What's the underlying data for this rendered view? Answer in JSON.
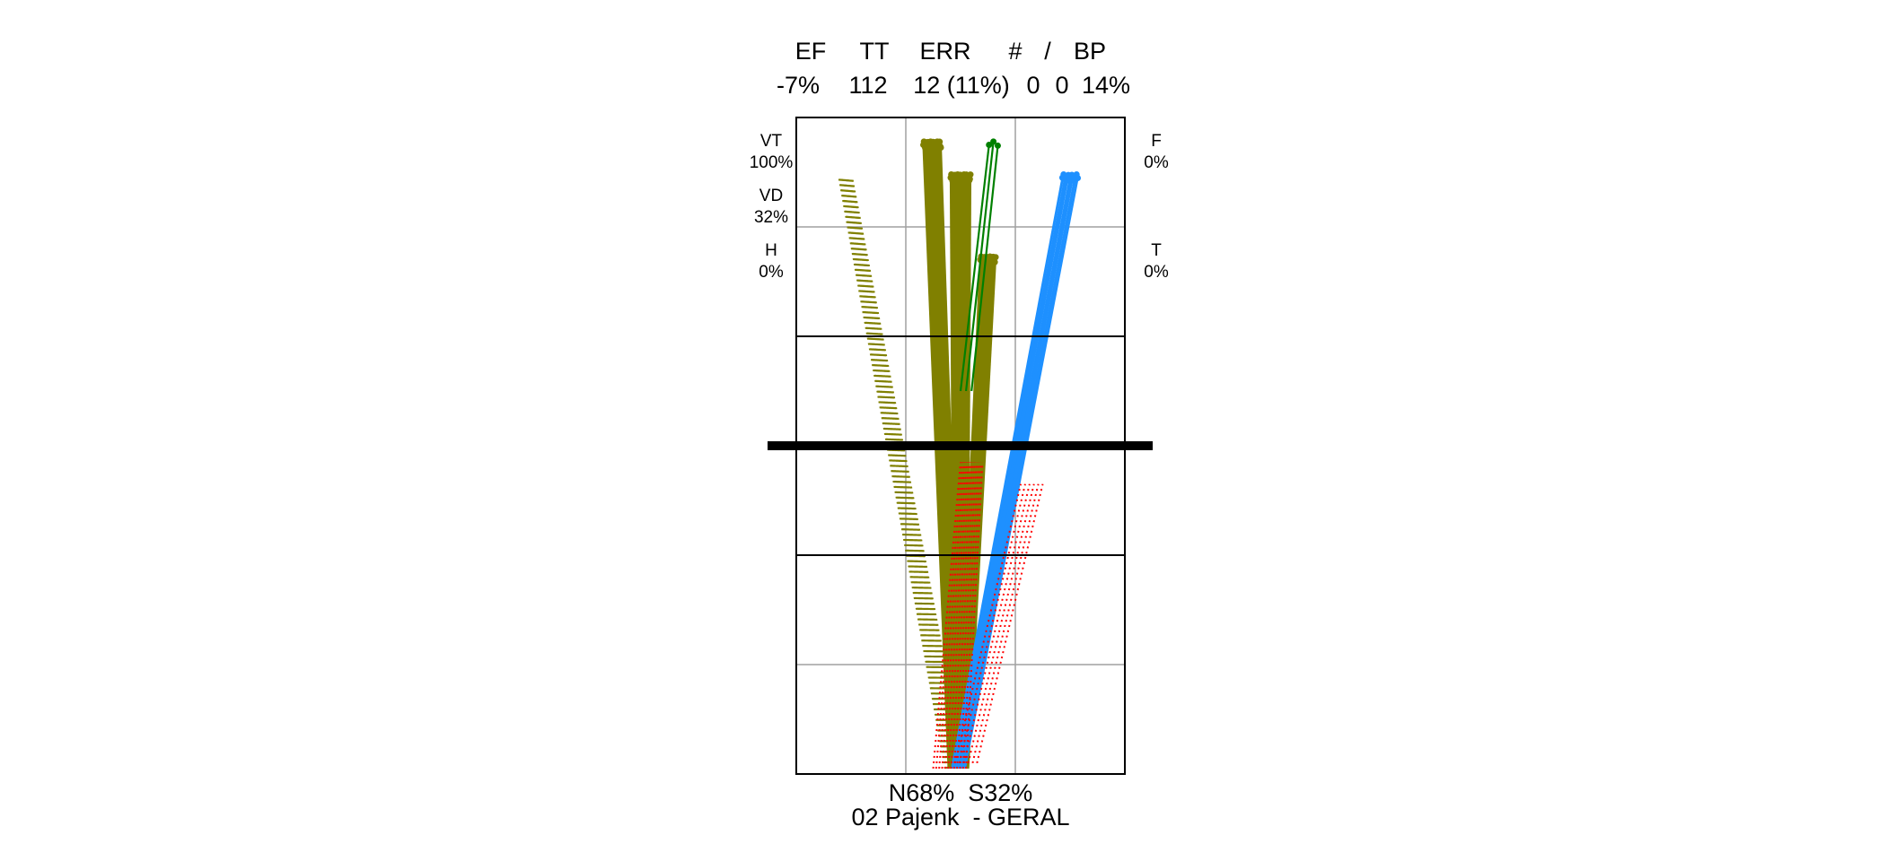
{
  "header": {
    "columns": [
      "EF",
      "TT",
      "ERR",
      "#",
      "/",
      "BP"
    ],
    "values": [
      "-7%",
      "112",
      "12 (11%)",
      "0",
      "0",
      "14%"
    ]
  },
  "left_labels": [
    {
      "name": "VT",
      "value": "100%"
    },
    {
      "name": "VD",
      "value": "32%"
    },
    {
      "name": "H",
      "value": "0%"
    }
  ],
  "right_labels": [
    {
      "name": "F",
      "value": "0%"
    },
    {
      "name": "T",
      "value": "0%"
    }
  ],
  "footer": {
    "split": "N68%  S32%",
    "title": "02 Pajenk  - GERAL"
  },
  "colors": {
    "olive": "#808000",
    "green": "#008000",
    "blue": "#1e90ff",
    "red": "#ff0000",
    "grid": "#a0a0a0",
    "frame": "#000000"
  },
  "chart_data": {
    "type": "line",
    "x_range": [
      0,
      3
    ],
    "y_range": [
      0,
      6
    ],
    "series": [
      {
        "color": "olive",
        "style": "dotted",
        "count": 20,
        "from": [
          1.45,
          0.05
        ],
        "to": [
          0.45,
          5.45
        ],
        "spread": [
          0.18,
          0.12
        ]
      },
      {
        "color": "olive",
        "style": "solid",
        "count": 30,
        "from": [
          1.45,
          0.05
        ],
        "to": [
          1.24,
          5.75
        ],
        "spread": [
          0.12,
          0.16
        ]
      },
      {
        "color": "olive",
        "style": "solid",
        "count": 35,
        "from": [
          1.5,
          0.05
        ],
        "to": [
          1.5,
          5.45
        ],
        "spread": [
          0.12,
          0.18
        ]
      },
      {
        "color": "olive",
        "style": "solid",
        "count": 20,
        "from": [
          1.52,
          0.05
        ],
        "to": [
          1.75,
          4.7
        ],
        "spread": [
          0.1,
          0.14
        ]
      },
      {
        "color": "green",
        "style": "solid",
        "count": 3,
        "from": [
          1.55,
          3.5
        ],
        "to": [
          1.8,
          5.75
        ],
        "spread": [
          0.1,
          0.08
        ]
      },
      {
        "color": "blue",
        "style": "solid",
        "count": 14,
        "from": [
          1.48,
          0.05
        ],
        "to": [
          2.5,
          5.45
        ],
        "spread": [
          0.12,
          0.14
        ]
      },
      {
        "color": "red",
        "style": "dotted",
        "count": 12,
        "from": [
          1.4,
          0.05
        ],
        "to": [
          1.6,
          2.85
        ],
        "spread": [
          0.3,
          0.2
        ]
      },
      {
        "color": "red",
        "style": "dotted",
        "count": 6,
        "from": [
          1.55,
          0.1
        ],
        "to": [
          2.15,
          2.65
        ],
        "spread": [
          0.2,
          0.2
        ]
      }
    ]
  }
}
